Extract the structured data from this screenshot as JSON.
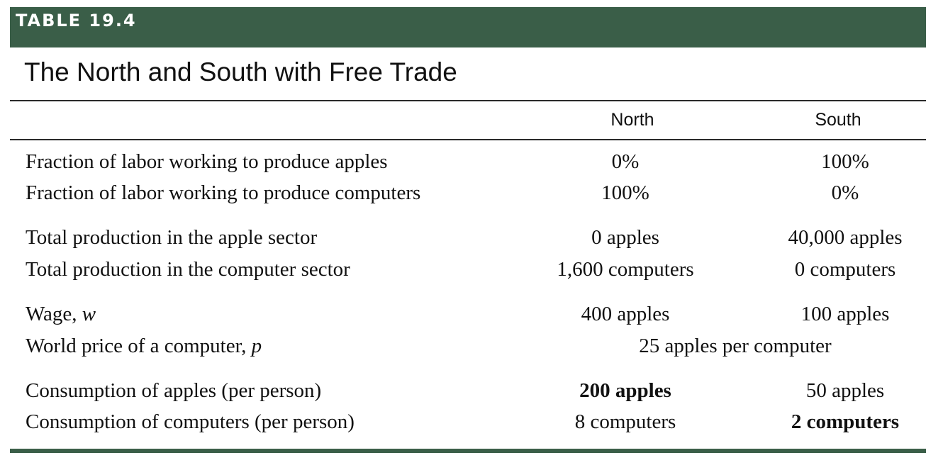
{
  "table": {
    "number": "TABLE 19.4",
    "title": "The North and South with Free Trade",
    "columns": [
      "North",
      "South"
    ],
    "colors": {
      "band": "#3a5e48",
      "text": "#111111"
    },
    "groups": [
      {
        "rows": [
          {
            "label": "Fraction of labor working to produce apples",
            "north": "0%",
            "south": "100%"
          },
          {
            "label": "Fraction of labor working to produce computers",
            "north": "100%",
            "south": "0%"
          }
        ]
      },
      {
        "rows": [
          {
            "label": "Total production in the apple sector",
            "north": "0 apples",
            "south": "40,000 apples"
          },
          {
            "label": "Total production in the computer sector",
            "north": "1,600 computers",
            "south": "0 computers"
          }
        ]
      },
      {
        "rows": [
          {
            "label": "Wage, ",
            "variable": "w",
            "north": "400 apples",
            "south": "100 apples"
          },
          {
            "label": "World price of a computer, ",
            "variable": "p",
            "shared": "25 apples per computer"
          }
        ]
      },
      {
        "rows": [
          {
            "label": "Consumption of apples (per person)",
            "north": "200 apples",
            "south": "50 apples",
            "bold": "north"
          },
          {
            "label": "Consumption of computers (per person)",
            "north": "8 computers",
            "south": "2 computers",
            "bold": "south"
          }
        ]
      }
    ]
  }
}
